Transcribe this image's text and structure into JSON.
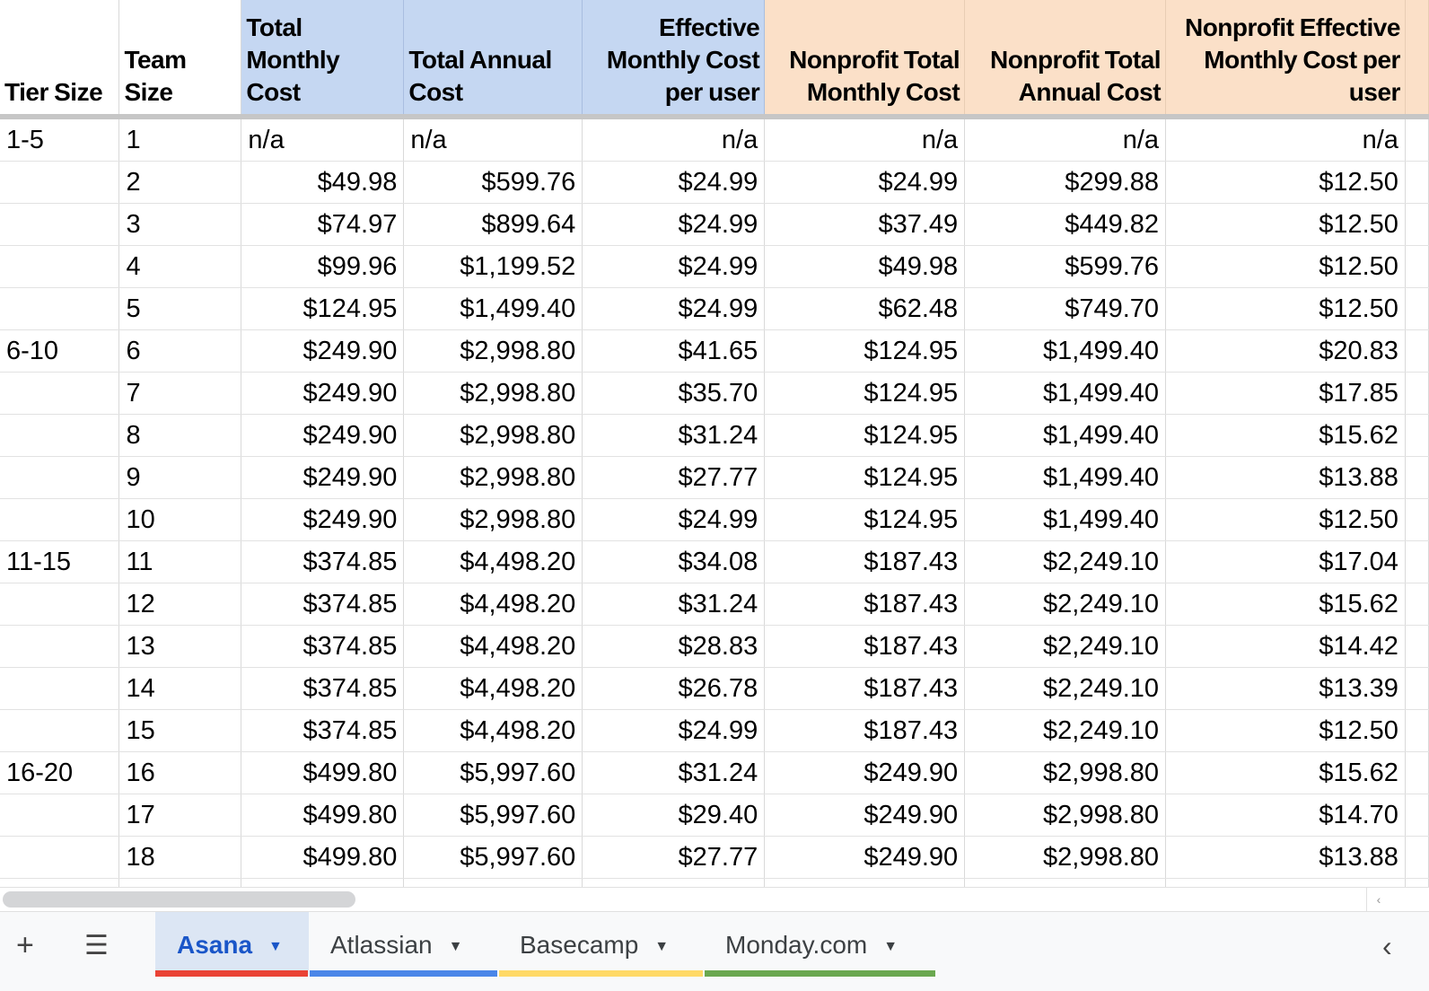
{
  "headers": [
    "Tier Size",
    "Team Size",
    "Total Monthly Cost",
    "Total Annual Cost",
    "Effective Monthly Cost per user",
    "Nonprofit Total Monthly Cost",
    "Nonprofit Total Annual Cost",
    "Nonprofit Effective Monthly Cost per user"
  ],
  "header_colors": {
    "standard": "#c5d7f2",
    "nonprofit": "#fbe0c8"
  },
  "rows": [
    [
      "1-5",
      "1",
      "n/a",
      "n/a",
      "n/a",
      "n/a",
      "n/a",
      "n/a"
    ],
    [
      "",
      "2",
      "$49.98",
      "$599.76",
      "$24.99",
      "$24.99",
      "$299.88",
      "$12.50"
    ],
    [
      "",
      "3",
      "$74.97",
      "$899.64",
      "$24.99",
      "$37.49",
      "$449.82",
      "$12.50"
    ],
    [
      "",
      "4",
      "$99.96",
      "$1,199.52",
      "$24.99",
      "$49.98",
      "$599.76",
      "$12.50"
    ],
    [
      "",
      "5",
      "$124.95",
      "$1,499.40",
      "$24.99",
      "$62.48",
      "$749.70",
      "$12.50"
    ],
    [
      "6-10",
      "6",
      "$249.90",
      "$2,998.80",
      "$41.65",
      "$124.95",
      "$1,499.40",
      "$20.83"
    ],
    [
      "",
      "7",
      "$249.90",
      "$2,998.80",
      "$35.70",
      "$124.95",
      "$1,499.40",
      "$17.85"
    ],
    [
      "",
      "8",
      "$249.90",
      "$2,998.80",
      "$31.24",
      "$124.95",
      "$1,499.40",
      "$15.62"
    ],
    [
      "",
      "9",
      "$249.90",
      "$2,998.80",
      "$27.77",
      "$124.95",
      "$1,499.40",
      "$13.88"
    ],
    [
      "",
      "10",
      "$249.90",
      "$2,998.80",
      "$24.99",
      "$124.95",
      "$1,499.40",
      "$12.50"
    ],
    [
      "11-15",
      "11",
      "$374.85",
      "$4,498.20",
      "$34.08",
      "$187.43",
      "$2,249.10",
      "$17.04"
    ],
    [
      "",
      "12",
      "$374.85",
      "$4,498.20",
      "$31.24",
      "$187.43",
      "$2,249.10",
      "$15.62"
    ],
    [
      "",
      "13",
      "$374.85",
      "$4,498.20",
      "$28.83",
      "$187.43",
      "$2,249.10",
      "$14.42"
    ],
    [
      "",
      "14",
      "$374.85",
      "$4,498.20",
      "$26.78",
      "$187.43",
      "$2,249.10",
      "$13.39"
    ],
    [
      "",
      "15",
      "$374.85",
      "$4,498.20",
      "$24.99",
      "$187.43",
      "$2,249.10",
      "$12.50"
    ],
    [
      "16-20",
      "16",
      "$499.80",
      "$5,997.60",
      "$31.24",
      "$249.90",
      "$2,998.80",
      "$15.62"
    ],
    [
      "",
      "17",
      "$499.80",
      "$5,997.60",
      "$29.40",
      "$249.90",
      "$2,998.80",
      "$14.70"
    ],
    [
      "",
      "18",
      "$499.80",
      "$5,997.60",
      "$27.77",
      "$249.90",
      "$2,998.80",
      "$13.88"
    ]
  ],
  "toolbar": {
    "add_icon": "+",
    "menu_icon": "☰",
    "scroll_icon": "‹"
  },
  "tabs": [
    {
      "label": "Asana",
      "color": "#ea4335",
      "active": true
    },
    {
      "label": "Atlassian",
      "color": "#4a86e8",
      "active": false
    },
    {
      "label": "Basecamp",
      "color": "#ffd966",
      "active": false
    },
    {
      "label": "Monday.com",
      "color": "#6aa84f",
      "active": false
    }
  ]
}
